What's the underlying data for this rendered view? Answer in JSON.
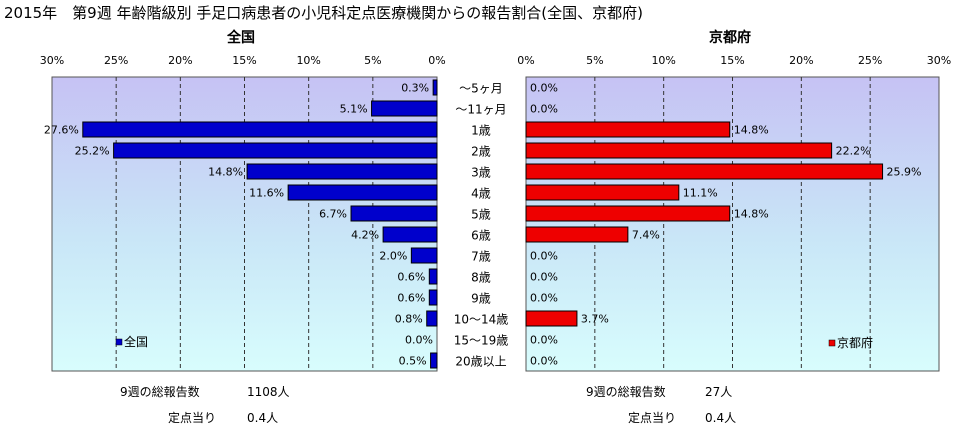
{
  "title": "2015年　第9週 年齢階級別 手足口病患者の小児科定点医療機関からの報告割合(全国、京都府)",
  "age_groups": [
    "〜5ヶ月",
    "〜11ヶ月",
    "1歳",
    "2歳",
    "3歳",
    "4歳",
    "5歳",
    "6歳",
    "7歳",
    "8歳",
    "9歳",
    "10〜14歳",
    "15〜19歳",
    "20歳以上"
  ],
  "chart_data": [
    {
      "type": "bar",
      "orientation": "horizontal",
      "direction": "right-to-left",
      "title": "全国",
      "legend": "全国",
      "legend_position": "bottom-left",
      "color": "#0000CC",
      "xlim": [
        0,
        30
      ],
      "xticks": [
        "30%",
        "25%",
        "20%",
        "15%",
        "10%",
        "5%",
        "0%"
      ],
      "categories": [
        "〜5ヶ月",
        "〜11ヶ月",
        "1歳",
        "2歳",
        "3歳",
        "4歳",
        "5歳",
        "6歳",
        "7歳",
        "8歳",
        "9歳",
        "10〜14歳",
        "15〜19歳",
        "20歳以上"
      ],
      "values": [
        0.3,
        5.1,
        27.6,
        25.2,
        14.8,
        11.6,
        6.7,
        4.2,
        2.0,
        0.6,
        0.6,
        0.8,
        0.0,
        0.5
      ],
      "labels": [
        "0.3%",
        "5.1%",
        "27.6%",
        "25.2%",
        "14.8%",
        "11.6%",
        "6.7%",
        "4.2%",
        "2.0%",
        "0.6%",
        "0.6%",
        "0.8%",
        "0.0%",
        "0.5%"
      ],
      "grid": true
    },
    {
      "type": "bar",
      "orientation": "horizontal",
      "direction": "left-to-right",
      "title": "京都府",
      "legend": "京都府",
      "legend_position": "bottom-right",
      "color": "#EE0000",
      "xlim": [
        0,
        30
      ],
      "xticks": [
        "0%",
        "5%",
        "10%",
        "15%",
        "20%",
        "25%",
        "30%"
      ],
      "categories": [
        "〜5ヶ月",
        "〜11ヶ月",
        "1歳",
        "2歳",
        "3歳",
        "4歳",
        "5歳",
        "6歳",
        "7歳",
        "8歳",
        "9歳",
        "10〜14歳",
        "15〜19歳",
        "20歳以上"
      ],
      "values": [
        0.0,
        0.0,
        14.8,
        22.2,
        25.9,
        11.1,
        14.8,
        7.4,
        0.0,
        0.0,
        0.0,
        3.7,
        0.0,
        0.0
      ],
      "labels": [
        "0.0%",
        "0.0%",
        "14.8%",
        "22.2%",
        "25.9%",
        "11.1%",
        "14.8%",
        "7.4%",
        "0.0%",
        "0.0%",
        "0.0%",
        "3.7%",
        "0.0%",
        "0.0%"
      ],
      "grid": true
    }
  ],
  "footer": {
    "national": {
      "total_label": "9週の総報告数",
      "total_value": "1108人",
      "per_label": "定点当り",
      "per_value": "0.4人"
    },
    "kyoto": {
      "total_label": "9週の総報告数",
      "total_value": "27人",
      "per_label": "定点当り",
      "per_value": "0.4人"
    }
  }
}
